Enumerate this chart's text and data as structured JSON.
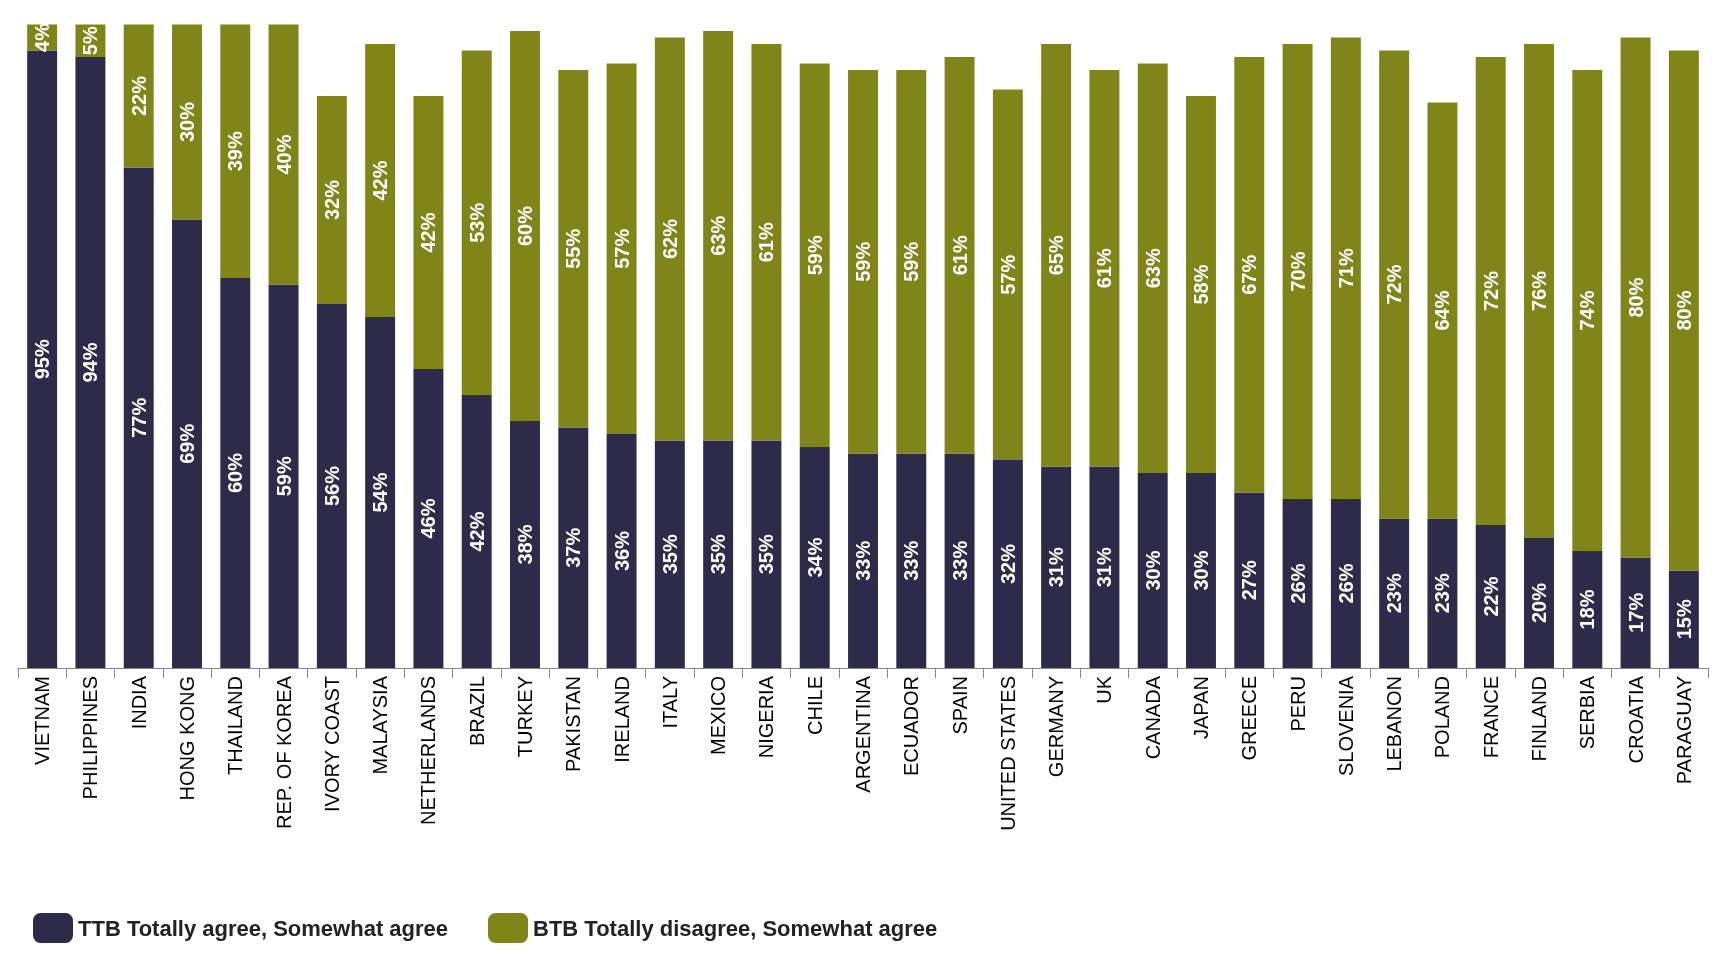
{
  "chart_data": {
    "type": "bar",
    "stacked": true,
    "legend": "bottom left",
    "categories": [
      "VIETNAM",
      "PHILIPPINES",
      "INDIA",
      "HONG KONG",
      "THAILAND",
      "REP. OF KOREA",
      "IVORY COAST",
      "MALAYSIA",
      "NETHERLANDS",
      "BRAZIL",
      "TURKEY",
      "PAKISTAN",
      "IRELAND",
      "ITALY",
      "MEXICO",
      "NIGERIA",
      "CHILE",
      "ARGENTINA",
      "ECUADOR",
      "SPAIN",
      "UNITED STATES",
      "GERMANY",
      "UK",
      "CANADA",
      "JAPAN",
      "GREECE",
      "PERU",
      "SLOVENIA",
      "LEBANON",
      "POLAND",
      "FRANCE",
      "FINLAND",
      "SERBIA",
      "CROATIA",
      "PARAGUAY"
    ],
    "series": [
      {
        "name": "TTB Totally agree, Somewhat agree",
        "color": "#2e2a4a",
        "values": [
          95,
          94,
          77,
          69,
          60,
          59,
          56,
          54,
          46,
          42,
          38,
          37,
          36,
          35,
          35,
          35,
          34,
          33,
          33,
          33,
          32,
          31,
          31,
          30,
          30,
          27,
          26,
          26,
          23,
          23,
          22,
          20,
          18,
          17,
          15
        ],
        "value_labels": [
          "95%",
          "94%",
          "77%",
          "69%",
          "60%",
          "59%",
          "56%",
          "54%",
          "46%",
          "42%",
          "38%",
          "37%",
          "36%",
          "35%",
          "35%",
          "35%",
          "34%",
          "33%",
          "33%",
          "33%",
          "32%",
          "31%",
          "31%",
          "30%",
          "30%",
          "27%",
          "26%",
          "26%",
          "23%",
          "23%",
          "22%",
          "20%",
          "18%",
          "17%",
          "15%"
        ]
      },
      {
        "name": "BTB Totally disagree, Somewhat agree",
        "color": "#7f8518",
        "values": [
          4,
          5,
          22,
          30,
          39,
          40,
          32,
          42,
          42,
          53,
          60,
          55,
          57,
          62,
          63,
          61,
          59,
          59,
          59,
          61,
          57,
          65,
          61,
          63,
          58,
          67,
          70,
          71,
          72,
          64,
          72,
          76,
          74,
          80,
          80
        ],
        "value_labels": [
          "4%",
          "5%",
          "22%",
          "30%",
          "39%",
          "40%",
          "32%",
          "42%",
          "42%",
          "53%",
          "60%",
          "55%",
          "57%",
          "62%",
          "63%",
          "61%",
          "59%",
          "59%",
          "59%",
          "61%",
          "57%",
          "65%",
          "61%",
          "63%",
          "58%",
          "67%",
          "70%",
          "71%",
          "72%",
          "64%",
          "72%",
          "76%",
          "74%",
          "80%",
          "80%"
        ]
      }
    ]
  }
}
